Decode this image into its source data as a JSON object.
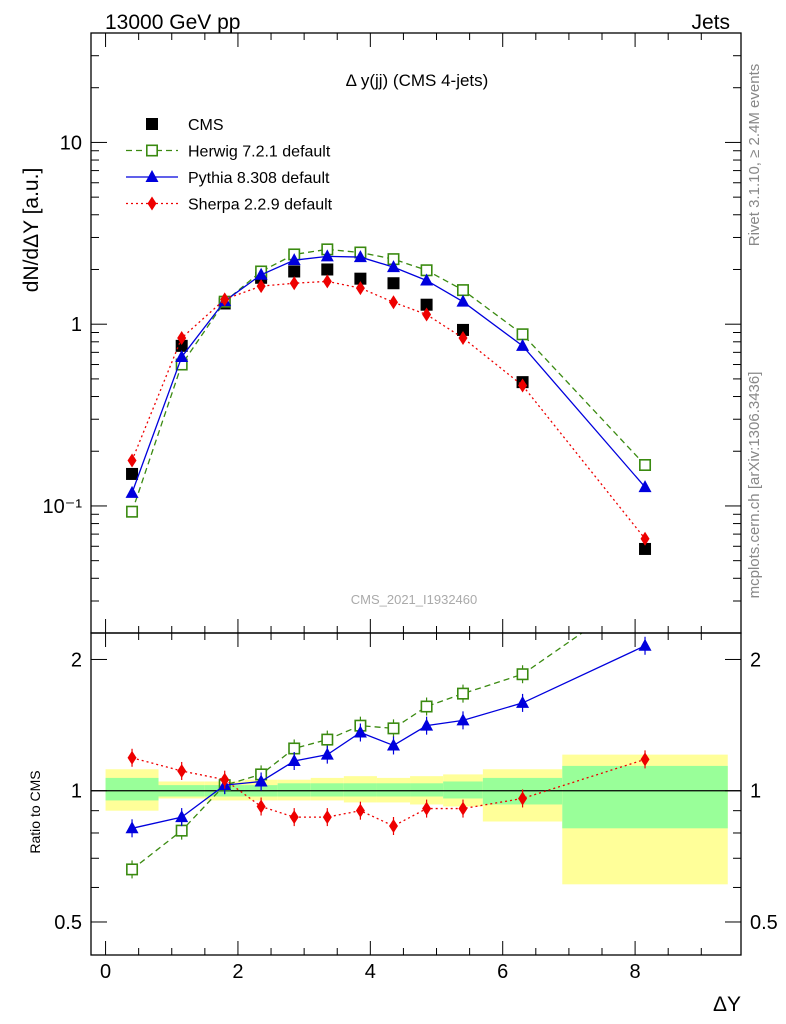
{
  "header": {
    "left": "13000 GeV pp",
    "right": "Jets"
  },
  "side_text": {
    "rivet": "Rivet 3.1.10, ≥ 2.4M events",
    "mcplots": "mcplots.cern.ch [arXiv:1306.3436]"
  },
  "watermark": "CMS_2021_I1932460",
  "chart_data": {
    "type": "scatter",
    "title": "Δ y(jj) (CMS 4-jets)",
    "xlabel": "ΔY",
    "ylabel": "dN/dΔY [a.u.]",
    "ratio_ylabel": "Ratio to CMS",
    "xlim": [
      -0.22,
      9.6
    ],
    "ylim": [
      0.02,
      40
    ],
    "yscale": "log",
    "ratio_ylim": [
      0.42,
      2.3
    ],
    "ratio_yscale": "log",
    "x_ticks": [
      0,
      2,
      4,
      6,
      8
    ],
    "y_tick_labels": [
      "10⁻¹",
      "1",
      "10"
    ],
    "ratio_tick_labels": [
      "0.5",
      "1",
      "2"
    ],
    "legend_position": "top-left",
    "bins": [
      [
        0.0,
        0.8
      ],
      [
        0.8,
        1.5
      ],
      [
        1.5,
        2.1
      ],
      [
        2.1,
        2.6
      ],
      [
        2.6,
        3.1
      ],
      [
        3.1,
        3.6
      ],
      [
        3.6,
        4.1
      ],
      [
        4.1,
        4.6
      ],
      [
        4.6,
        5.1
      ],
      [
        5.1,
        5.7
      ],
      [
        5.7,
        6.9
      ],
      [
        6.9,
        9.4
      ]
    ],
    "x": [
      0.4,
      1.15,
      1.8,
      2.35,
      2.85,
      3.35,
      3.85,
      4.35,
      4.85,
      5.4,
      6.3,
      8.15
    ],
    "series": [
      {
        "name": "CMS",
        "color": "#000000",
        "marker": "filled-square",
        "line": "none",
        "values": [
          0.15,
          0.76,
          1.3,
          1.8,
          1.95,
          2.0,
          1.78,
          1.68,
          1.28,
          0.93,
          0.48,
          0.058
        ]
      },
      {
        "name": "Herwig 7.2.1 default",
        "color": "#3a8a10",
        "marker": "open-square",
        "line": "dashed",
        "values": [
          0.093,
          0.6,
          1.33,
          1.95,
          2.42,
          2.58,
          2.48,
          2.28,
          1.98,
          1.54,
          0.88,
          0.168
        ]
      },
      {
        "name": "Pythia 8.308 default",
        "color": "#0000dd",
        "marker": "filled-triangle",
        "line": "solid",
        "values": [
          0.118,
          0.66,
          1.34,
          1.87,
          2.25,
          2.36,
          2.34,
          2.06,
          1.74,
          1.33,
          0.76,
          0.127
        ]
      },
      {
        "name": "Sherpa 2.2.9 default",
        "color": "#ee0000",
        "marker": "filled-diamond",
        "line": "dotted",
        "values": [
          0.178,
          0.84,
          1.37,
          1.62,
          1.68,
          1.72,
          1.58,
          1.32,
          1.13,
          0.84,
          0.46,
          0.066
        ]
      }
    ],
    "ratios": [
      {
        "name": "Herwig 7.2.1 default",
        "values": [
          0.66,
          0.81,
          1.03,
          1.09,
          1.25,
          1.31,
          1.41,
          1.39,
          1.56,
          1.67,
          1.85,
          2.9
        ]
      },
      {
        "name": "Pythia 8.308 default",
        "values": [
          0.82,
          0.87,
          1.03,
          1.05,
          1.17,
          1.21,
          1.36,
          1.27,
          1.41,
          1.45,
          1.59,
          2.15
        ]
      },
      {
        "name": "Sherpa 2.2.9 default",
        "values": [
          1.19,
          1.11,
          1.06,
          0.92,
          0.87,
          0.87,
          0.9,
          0.83,
          0.91,
          0.91,
          0.96,
          1.18
        ]
      }
    ],
    "band_inner": [
      [
        0.95,
        1.07
      ],
      [
        0.97,
        1.03
      ],
      [
        0.97,
        1.03
      ],
      [
        0.97,
        1.03
      ],
      [
        0.97,
        1.04
      ],
      [
        0.97,
        1.04
      ],
      [
        0.97,
        1.04
      ],
      [
        0.97,
        1.04
      ],
      [
        0.97,
        1.04
      ],
      [
        0.96,
        1.05
      ],
      [
        0.93,
        1.07
      ],
      [
        0.82,
        1.14
      ]
    ],
    "band_outer": [
      [
        0.9,
        1.12
      ],
      [
        0.96,
        1.05
      ],
      [
        0.95,
        1.05
      ],
      [
        0.95,
        1.06
      ],
      [
        0.95,
        1.06
      ],
      [
        0.95,
        1.07
      ],
      [
        0.94,
        1.08
      ],
      [
        0.94,
        1.07
      ],
      [
        0.93,
        1.08
      ],
      [
        0.92,
        1.09
      ],
      [
        0.85,
        1.12
      ],
      [
        0.61,
        1.21
      ]
    ],
    "band_colors": {
      "inner": "#99ff99",
      "outer": "#ffff99"
    }
  }
}
